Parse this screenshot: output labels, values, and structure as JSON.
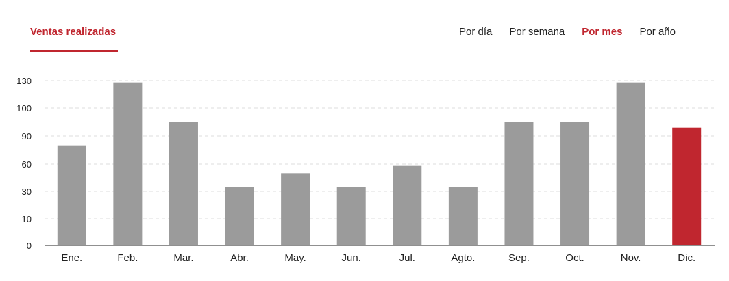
{
  "header": {
    "title": "Ventas realizadas",
    "tabs": [
      {
        "label": "Por día",
        "active": false
      },
      {
        "label": "Por semana",
        "active": false
      },
      {
        "label": "Por mes",
        "active": true
      },
      {
        "label": "Por año",
        "active": false
      }
    ]
  },
  "colors": {
    "accent": "#c0262f",
    "bar": "#9b9b9b",
    "highlight": "#c0262f",
    "grid": "#dddddd"
  },
  "chart_data": {
    "type": "bar",
    "categories": [
      "Ene.",
      "Feb.",
      "Mar.",
      "Abr.",
      "May.",
      "Jun.",
      "Jul.",
      "Agto.",
      "Sep.",
      "Oct.",
      "Nov.",
      "Dic."
    ],
    "y_ticks": [
      "0",
      "10",
      "30",
      "60",
      "90",
      "100",
      "130"
    ],
    "values": [
      80,
      128,
      95,
      35,
      50,
      35,
      58,
      35,
      95,
      95,
      128,
      93
    ],
    "highlight_index": 11,
    "grid": true,
    "gridline_style": "dashed"
  }
}
